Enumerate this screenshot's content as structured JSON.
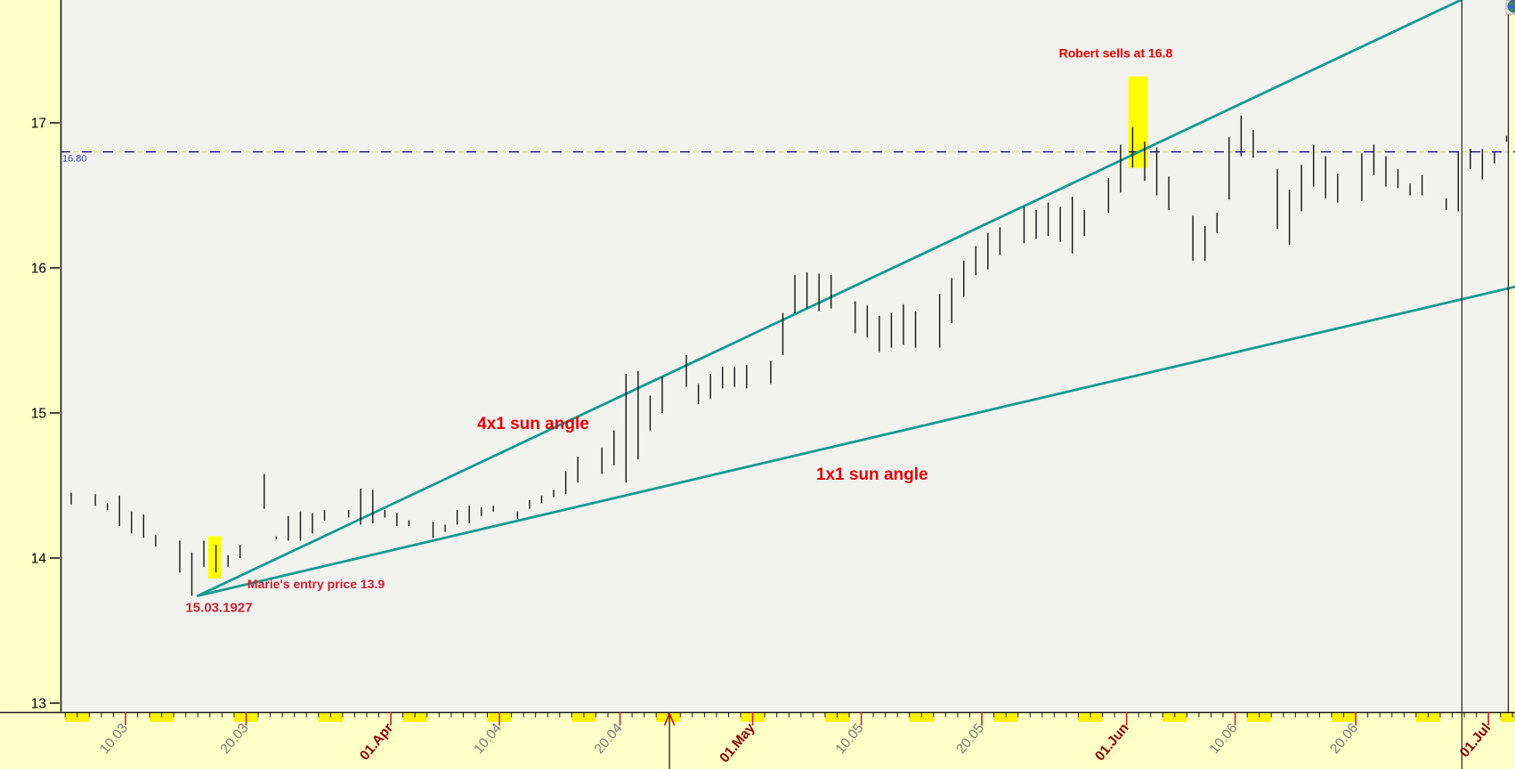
{
  "colors": {
    "margin_bg": "#FFFFC8",
    "plot_bg": "#F2F2EF",
    "bar": "#131313",
    "trend_teal": "#159A94",
    "dashed_navy": "#000080",
    "dashed_yellow": "#E3E381",
    "highlight_yellow": "#FFFF00",
    "weekend_yellow": "#FFF200",
    "annotation_red": "#E60000",
    "annotation_crimson": "#CF2030",
    "axis_label_gray": "#7A7A7A",
    "axis_label_maroon": "#8B0000",
    "tick_red": "#CC2222",
    "price_label_blue": "#3340C8",
    "axis_black": "#1A1A1A"
  },
  "icons": {
    "top_right": "globe"
  },
  "price_line": {
    "label": "16.80",
    "value": 16.8
  },
  "annotations": {
    "robert": {
      "text": "Robert sells at 16.8",
      "day": 87.1,
      "price": 17.48,
      "size": 14,
      "color_key": "annotation_red"
    },
    "angle4": {
      "text": "4x1 sun angle",
      "day": 38.8,
      "price": 14.93,
      "size": 19,
      "color_key": "annotation_red"
    },
    "angle1": {
      "text": "1x1 sun angle",
      "day": 66.9,
      "price": 14.58,
      "size": 19,
      "color_key": "annotation_red"
    },
    "marie": {
      "text": "Marie's entry price 13.9",
      "day": 20.8,
      "price": 13.82,
      "size": 14,
      "color_key": "annotation_crimson"
    },
    "entry_date": {
      "text": "15.03.1927",
      "day": 12.75,
      "price": 13.66,
      "size": 15,
      "color_key": "annotation_crimson"
    }
  },
  "chart_data": {
    "type": "bar",
    "subtype": "daily-high-low-price-bars",
    "y_axis": {
      "tick_labels": [
        "17",
        "16",
        "15",
        "14",
        "13"
      ],
      "tick_values": [
        17,
        16,
        15,
        14,
        13
      ],
      "visible_price_range": [
        12.94,
        17.85
      ],
      "grid": false
    },
    "x_axis": {
      "note": "day index 0 = first visible bar; annotation 15.03.1927 is at day 10",
      "ticks": [
        {
          "label": "10.03",
          "day": 5,
          "month_start": false
        },
        {
          "label": "20.03",
          "day": 15,
          "month_start": false
        },
        {
          "label": "01.Apr",
          "day": 27,
          "month_start": true
        },
        {
          "label": "10.04",
          "day": 36,
          "month_start": false
        },
        {
          "label": "20.04",
          "day": 46,
          "month_start": false
        },
        {
          "label": "01.May",
          "day": 57,
          "month_start": true
        },
        {
          "label": "10.05",
          "day": 66,
          "month_start": false
        },
        {
          "label": "20.05",
          "day": 76,
          "month_start": false
        },
        {
          "label": "01.Jun",
          "day": 88,
          "month_start": true
        },
        {
          "label": "10.06",
          "day": 97,
          "month_start": false
        },
        {
          "label": "20.06",
          "day": 107,
          "month_start": false
        },
        {
          "label": "01.Jul",
          "day": 118,
          "month_start": true
        }
      ],
      "minor_tick_every_days": 1
    },
    "bars": [
      [
        0,
        14.45,
        14.37
      ],
      [
        2,
        14.44,
        14.36
      ],
      [
        3,
        14.38,
        14.33
      ],
      [
        4,
        14.43,
        14.22
      ],
      [
        5,
        14.32,
        14.17
      ],
      [
        6,
        14.3,
        14.14
      ],
      [
        7,
        14.16,
        14.08
      ],
      [
        9,
        14.12,
        13.9
      ],
      [
        10,
        14.04,
        13.74
      ],
      [
        11,
        14.12,
        13.94
      ],
      [
        12,
        14.09,
        13.9
      ],
      [
        13,
        14.02,
        13.94
      ],
      [
        14,
        14.09,
        14.0
      ],
      [
        16,
        14.58,
        14.34
      ],
      [
        17,
        14.15,
        14.13
      ],
      [
        18,
        14.29,
        14.12
      ],
      [
        19,
        14.32,
        14.12
      ],
      [
        20,
        14.31,
        14.17
      ],
      [
        21,
        14.33,
        14.26
      ],
      [
        23,
        14.33,
        14.28
      ],
      [
        24,
        14.48,
        14.23
      ],
      [
        25,
        14.47,
        14.24
      ],
      [
        26,
        14.33,
        14.28
      ],
      [
        27,
        14.31,
        14.22
      ],
      [
        28,
        14.26,
        14.22
      ],
      [
        30,
        14.25,
        14.14
      ],
      [
        31,
        14.23,
        14.18
      ],
      [
        32,
        14.33,
        14.23
      ],
      [
        33,
        14.36,
        14.24
      ],
      [
        34,
        14.35,
        14.29
      ],
      [
        35,
        14.36,
        14.32
      ],
      [
        37,
        14.32,
        14.27
      ],
      [
        38,
        14.4,
        14.34
      ],
      [
        39,
        14.43,
        14.38
      ],
      [
        40,
        14.47,
        14.42
      ],
      [
        41,
        14.6,
        14.44
      ],
      [
        42,
        14.7,
        14.52
      ],
      [
        44,
        14.76,
        14.58
      ],
      [
        45,
        14.88,
        14.64
      ],
      [
        46,
        15.27,
        14.52
      ],
      [
        47,
        15.29,
        14.68
      ],
      [
        48,
        15.12,
        14.88
      ],
      [
        49,
        15.25,
        15.0
      ],
      [
        51,
        15.4,
        15.18
      ],
      [
        52,
        15.2,
        15.06
      ],
      [
        53,
        15.27,
        15.1
      ],
      [
        54,
        15.32,
        15.17
      ],
      [
        55,
        15.32,
        15.18
      ],
      [
        56,
        15.33,
        15.17
      ],
      [
        58,
        15.36,
        15.2
      ],
      [
        59,
        15.69,
        15.4
      ],
      [
        60,
        15.95,
        15.69
      ],
      [
        61,
        15.97,
        15.72
      ],
      [
        62,
        15.96,
        15.7
      ],
      [
        63,
        15.95,
        15.72
      ],
      [
        65,
        15.77,
        15.55
      ],
      [
        66,
        15.74,
        15.52
      ],
      [
        67,
        15.67,
        15.42
      ],
      [
        68,
        15.69,
        15.45
      ],
      [
        69,
        15.75,
        15.47
      ],
      [
        70,
        15.7,
        15.45
      ],
      [
        72,
        15.82,
        15.45
      ],
      [
        73,
        15.93,
        15.62
      ],
      [
        74,
        16.05,
        15.8
      ],
      [
        75,
        16.15,
        15.95
      ],
      [
        76,
        16.24,
        15.99
      ],
      [
        77,
        16.28,
        16.09
      ],
      [
        79,
        16.42,
        16.17
      ],
      [
        80,
        16.4,
        16.2
      ],
      [
        81,
        16.45,
        16.22
      ],
      [
        82,
        16.42,
        16.18
      ],
      [
        83,
        16.49,
        16.1
      ],
      [
        84,
        16.4,
        16.22
      ],
      [
        86,
        16.62,
        16.38
      ],
      [
        87,
        16.85,
        16.52
      ],
      [
        88,
        16.97,
        16.69
      ],
      [
        89,
        16.87,
        16.6
      ],
      [
        90,
        16.83,
        16.5
      ],
      [
        91,
        16.63,
        16.4
      ],
      [
        93,
        16.36,
        16.05
      ],
      [
        94,
        16.29,
        16.05
      ],
      [
        95,
        16.38,
        16.24
      ],
      [
        96,
        16.9,
        16.47
      ],
      [
        97,
        17.05,
        16.77
      ],
      [
        98,
        16.95,
        16.76
      ],
      [
        100,
        16.68,
        16.27
      ],
      [
        101,
        16.54,
        16.16
      ],
      [
        102,
        16.71,
        16.39
      ],
      [
        103,
        16.85,
        16.56
      ],
      [
        104,
        16.77,
        16.48
      ],
      [
        105,
        16.65,
        16.45
      ],
      [
        107,
        16.79,
        16.46
      ],
      [
        108,
        16.85,
        16.64
      ],
      [
        109,
        16.77,
        16.56
      ],
      [
        110,
        16.68,
        16.55
      ],
      [
        111,
        16.58,
        16.5
      ],
      [
        112,
        16.64,
        16.5
      ],
      [
        114,
        16.48,
        16.4
      ],
      [
        115,
        16.8,
        16.39
      ],
      [
        116,
        16.82,
        16.68
      ],
      [
        117,
        16.82,
        16.61
      ],
      [
        118,
        16.8,
        16.72
      ],
      [
        119,
        16.91,
        16.87
      ]
    ],
    "trend_lines": [
      {
        "name": "4x1 sun angle",
        "from_day": 10.5,
        "from_price": 13.74,
        "to_day": 115.8,
        "to_price": 17.85
      },
      {
        "name": "1x1 sun angle",
        "from_day": 10.5,
        "from_price": 13.74,
        "to_day": 120.2,
        "to_price": 15.87
      }
    ],
    "highlights": [
      {
        "name": "marie-entry-highlight",
        "day_start": 11.85,
        "day_end": 12.95,
        "price_top": 14.15,
        "price_bottom": 13.86
      },
      {
        "name": "robert-exit-highlight",
        "day_start": 88.15,
        "day_end": 89.75,
        "price_top": 17.32,
        "price_bottom": 16.69
      }
    ],
    "horizontal_price_line": 16.8,
    "vertical_line_day": 115.8,
    "event_marker_day": 50.1,
    "weekend_shading": {
      "first_day": 0,
      "period_days": 7,
      "span_days": 2,
      "last_day": 119
    }
  }
}
